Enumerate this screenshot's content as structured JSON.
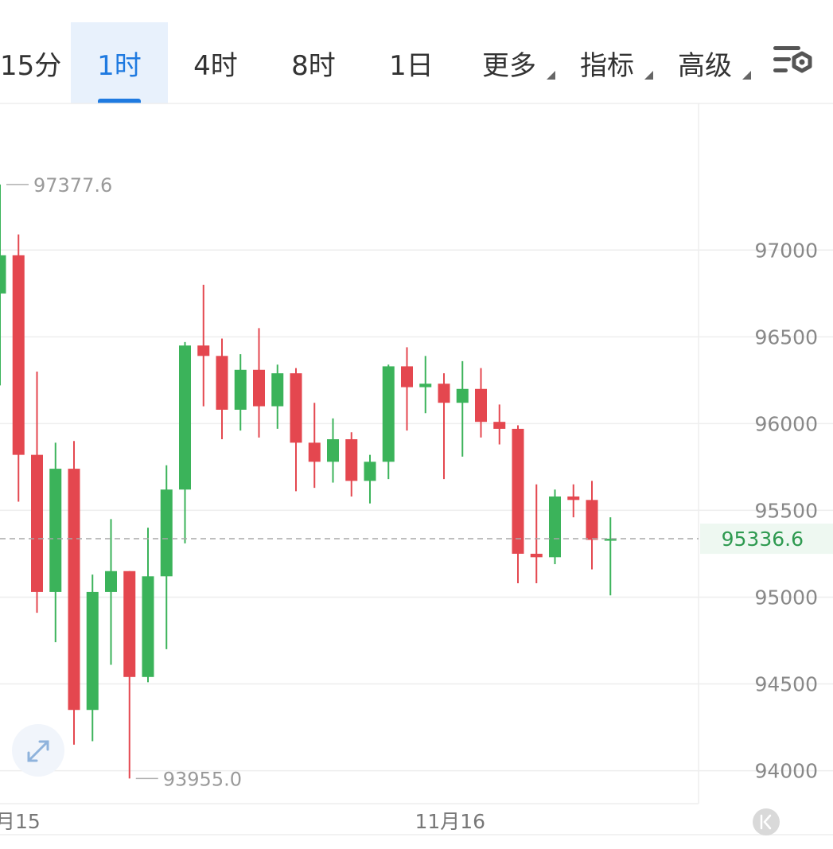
{
  "colors": {
    "up": "#3bb35a",
    "down": "#e4474f",
    "accent": "#1f7ae0",
    "grid": "#eeeeee",
    "current_price": "#2e9a50"
  },
  "timeframes": [
    {
      "label": "15分",
      "active": false
    },
    {
      "label": "1时",
      "active": true
    },
    {
      "label": "4时",
      "active": false
    },
    {
      "label": "8时",
      "active": false
    },
    {
      "label": "1日",
      "active": false
    },
    {
      "label": "更多",
      "active": false,
      "dropdown": true
    },
    {
      "label": "指标",
      "active": false,
      "dropdown": true
    },
    {
      "label": "高级",
      "active": false,
      "dropdown": true
    }
  ],
  "toolbar": {
    "settings_icon": "chart-settings-icon"
  },
  "controls": {
    "expand_icon": "expand-arrows-icon",
    "scroll_icon": "scroll-left-icon"
  },
  "chart_data": {
    "type": "candlestick",
    "y_ticks": [
      97000,
      96500,
      96000,
      95500,
      95000,
      94500,
      94000
    ],
    "ylim": [
      93810,
      97845
    ],
    "x_labels": [
      {
        "label": "月15",
        "index": 0
      },
      {
        "label": "11月16",
        "index": 23
      }
    ],
    "current_price": 95336.6,
    "current_price_label": "95336.6",
    "high_label": "97377.6",
    "low_label": "93955.0",
    "high_index": 0,
    "low_index": 7,
    "candles": [
      {
        "o": 96750,
        "h": 97377.6,
        "l": 96220,
        "c": 96970
      },
      {
        "o": 96970,
        "h": 97090,
        "l": 95550,
        "c": 95820
      },
      {
        "o": 95820,
        "h": 96300,
        "l": 94910,
        "c": 95030
      },
      {
        "o": 95030,
        "h": 95890,
        "l": 94740,
        "c": 95740
      },
      {
        "o": 95740,
        "h": 95900,
        "l": 94150,
        "c": 94350
      },
      {
        "o": 94350,
        "h": 95130,
        "l": 94170,
        "c": 95030
      },
      {
        "o": 95030,
        "h": 95450,
        "l": 94610,
        "c": 95150
      },
      {
        "o": 95150,
        "h": 95150,
        "l": 93955.0,
        "c": 94540
      },
      {
        "o": 94540,
        "h": 95400,
        "l": 94510,
        "c": 95120
      },
      {
        "o": 95120,
        "h": 95760,
        "l": 94700,
        "c": 95620
      },
      {
        "o": 95620,
        "h": 96470,
        "l": 95310,
        "c": 96450
      },
      {
        "o": 96450,
        "h": 96800,
        "l": 96100,
        "c": 96390
      },
      {
        "o": 96390,
        "h": 96490,
        "l": 95910,
        "c": 96080
      },
      {
        "o": 96080,
        "h": 96400,
        "l": 95960,
        "c": 96310
      },
      {
        "o": 96310,
        "h": 96550,
        "l": 95920,
        "c": 96100
      },
      {
        "o": 96100,
        "h": 96340,
        "l": 95970,
        "c": 96290
      },
      {
        "o": 96290,
        "h": 96320,
        "l": 95610,
        "c": 95890
      },
      {
        "o": 95890,
        "h": 96120,
        "l": 95630,
        "c": 95780
      },
      {
        "o": 95780,
        "h": 96030,
        "l": 95660,
        "c": 95910
      },
      {
        "o": 95910,
        "h": 95950,
        "l": 95580,
        "c": 95670
      },
      {
        "o": 95670,
        "h": 95820,
        "l": 95540,
        "c": 95780
      },
      {
        "o": 95780,
        "h": 96340,
        "l": 95680,
        "c": 96330
      },
      {
        "o": 96330,
        "h": 96440,
        "l": 95960,
        "c": 96210
      },
      {
        "o": 96210,
        "h": 96390,
        "l": 96060,
        "c": 96230
      },
      {
        "o": 96230,
        "h": 96290,
        "l": 95680,
        "c": 96120
      },
      {
        "o": 96120,
        "h": 96360,
        "l": 95810,
        "c": 96200
      },
      {
        "o": 96200,
        "h": 96320,
        "l": 95920,
        "c": 96010
      },
      {
        "o": 96010,
        "h": 96110,
        "l": 95880,
        "c": 95970
      },
      {
        "o": 95970,
        "h": 95990,
        "l": 95080,
        "c": 95250
      },
      {
        "o": 95250,
        "h": 95650,
        "l": 95080,
        "c": 95230
      },
      {
        "o": 95230,
        "h": 95620,
        "l": 95190,
        "c": 95580
      },
      {
        "o": 95580,
        "h": 95650,
        "l": 95460,
        "c": 95560
      },
      {
        "o": 95560,
        "h": 95670,
        "l": 95160,
        "c": 95330
      },
      {
        "o": 95330,
        "h": 95460,
        "l": 95010,
        "c": 95336.6
      }
    ]
  }
}
